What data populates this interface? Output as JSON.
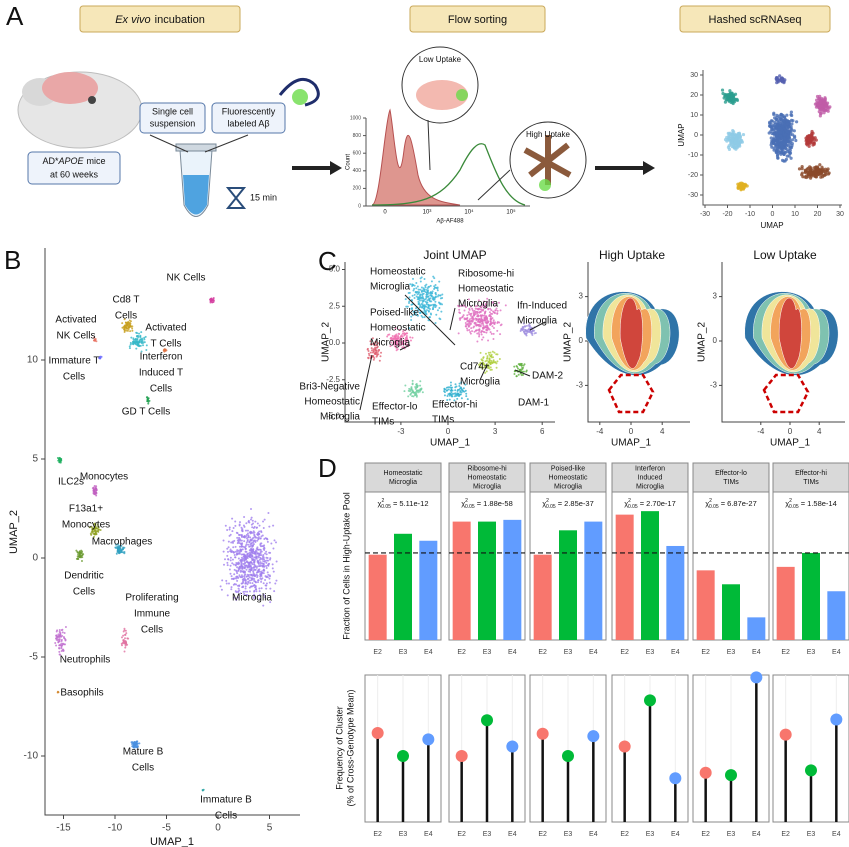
{
  "panelA": {
    "label": "A",
    "steps": [
      {
        "italic": "Ex vivo",
        "text": "incubation"
      },
      {
        "text": "Flow sorting"
      },
      {
        "text": "Hashed scRNAseq"
      }
    ],
    "suspension": [
      "Single cell",
      "suspension"
    ],
    "abeta": [
      "Fluorescently",
      "labeled Aβ"
    ],
    "mice": {
      "prefix": "AD*",
      "italic": "APOE",
      "suffix": "mice",
      "line2": "at 60 weeks"
    },
    "time": "15 min",
    "low": "Low Uptake",
    "high": "High Uptake",
    "hist": {
      "ylabel": "Count",
      "xlabel": "Aβ-AF488",
      "ylim": [
        0,
        1000
      ],
      "yticks": [
        0,
        200,
        400,
        600,
        800,
        1000
      ],
      "xtick_labels": [
        "0",
        "10³",
        "10⁴",
        "10⁵"
      ]
    },
    "umap": {
      "xlabel": "UMAP",
      "ylabel": "UMAP",
      "xlim": [
        -30,
        30
      ],
      "ylim": [
        -30,
        30
      ],
      "xticks": [
        -30,
        -20,
        -10,
        0,
        10,
        20,
        30
      ],
      "yticks": [
        -30,
        -20,
        -10,
        0,
        10,
        20,
        30
      ]
    }
  },
  "panelB": {
    "label": "B",
    "xlabel": "UMAP_1",
    "ylabel": "UMAP_2",
    "xticks": [
      -15,
      -10,
      -5,
      0,
      5
    ],
    "yticks": [
      -10,
      -5,
      0,
      5,
      10
    ],
    "clusters": [
      [
        "NK Cells"
      ],
      [
        "Cd8 T",
        "Cells"
      ],
      [
        "Activated",
        "NK Cells"
      ],
      [
        "Activated",
        "T Cells"
      ],
      [
        "Immature T",
        "Cells"
      ],
      [
        "Interferon",
        "Induced T",
        "Cells"
      ],
      [
        "GD T Cells"
      ],
      [
        "ILC2s"
      ],
      [
        "Monocytes"
      ],
      [
        "F13a1+",
        "Monocytes"
      ],
      [
        "Macrophages"
      ],
      [
        "Dendritic",
        "Cells"
      ],
      [
        "Proliferating",
        "Immune",
        "Cells"
      ],
      [
        "Microglia"
      ],
      [
        "Neutrophils"
      ],
      [
        "Basophils"
      ],
      [
        "Mature B",
        "Cells"
      ],
      [
        "Immature B",
        "Cells"
      ]
    ]
  },
  "panelC": {
    "label": "C",
    "titles": [
      "Joint UMAP",
      "High Uptake",
      "Low Uptake"
    ],
    "xlabel": "UMAP_1",
    "ylabel": "UMAP_2",
    "joint_xticks": [
      -3,
      0,
      3,
      6
    ],
    "joint_yticks": [
      {
        "value": -5,
        "label": "-5.0"
      },
      {
        "value": -2.5,
        "label": "-2.5"
      },
      {
        "value": 0,
        "label": "0.0"
      },
      {
        "value": 2.5,
        "label": "2.5"
      },
      {
        "value": 5,
        "label": "5.0"
      }
    ],
    "density_xticks": [
      -4,
      0,
      4
    ],
    "density_yticks": [
      -3,
      0,
      3
    ],
    "clusters": [
      [
        "Homeostatic",
        "Microglia"
      ],
      [
        "Ribosome-hi",
        "Homeostatic",
        "Microglia"
      ],
      [
        "Poised-like",
        "Homeostatic",
        "Microglia"
      ],
      [
        "Ifn-Induced",
        "Microglia"
      ],
      [
        "Cd74+",
        "Microglia"
      ],
      [
        "DAM-2"
      ],
      [
        "Bri3-Negative",
        "Homeostatic",
        "Microglia"
      ],
      [
        "Effector-lo",
        "TIMs"
      ],
      [
        "Effector-hi",
        "TIMs"
      ],
      [
        "DAM-1"
      ]
    ]
  },
  "panelD": {
    "label": "D"
  },
  "chart_data": [
    {
      "type": "bar",
      "ylabel": "Fraction of Cells in High-Uptake Pool",
      "categories": [
        "E2",
        "E3",
        "E4"
      ],
      "colors": [
        "#f8766d",
        "#00ba38",
        "#619cff"
      ],
      "ylim": [
        0,
        0.85
      ],
      "hline": 0.5,
      "stat_symbol": "χ",
      "stat_sup": "2",
      "stat_sub": "0.05",
      "facets": [
        {
          "title": [
            "Homeostatic",
            "Microglia"
          ],
          "stat": "= 5.11e-12",
          "values": [
            0.49,
            0.61,
            0.57
          ]
        },
        {
          "title": [
            "Ribosome-hi",
            "Homeostatic",
            "Microglia"
          ],
          "stat": "= 1.88e-58",
          "values": [
            0.68,
            0.68,
            0.69
          ]
        },
        {
          "title": [
            "Poised-like",
            "Homeostatic",
            "Microglia"
          ],
          "stat": "= 2.85e-37",
          "values": [
            0.49,
            0.63,
            0.68
          ]
        },
        {
          "title": [
            "Interferon",
            "Induced",
            "Microglia"
          ],
          "stat": "= 2.70e-17",
          "values": [
            0.72,
            0.74,
            0.54
          ]
        },
        {
          "title": [
            "Effector-lo",
            "TIMs"
          ],
          "stat": "= 6.87e-27",
          "values": [
            0.4,
            0.32,
            0.13
          ]
        },
        {
          "title": [
            "Effector-hi",
            "TIMs"
          ],
          "stat": "= 1.58e-14",
          "values": [
            0.42,
            0.5,
            0.28
          ]
        }
      ]
    },
    {
      "type": "lollipop",
      "ylabel": [
        "Frequency of Cluster",
        "(% of Cross-Genotype Mean)"
      ],
      "categories": [
        "E2",
        "E3",
        "E4"
      ],
      "colors": [
        "#f8766d",
        "#00ba38",
        "#619cff"
      ],
      "ylim": [
        0,
        185
      ],
      "facets": [
        {
          "values": [
            112,
            83,
            104
          ]
        },
        {
          "values": [
            83,
            128,
            95
          ]
        },
        {
          "values": [
            111,
            83,
            108
          ]
        },
        {
          "values": [
            95,
            153,
            55
          ]
        },
        {
          "values": [
            62,
            59,
            182
          ]
        },
        {
          "values": [
            110,
            65,
            129
          ]
        }
      ]
    }
  ]
}
